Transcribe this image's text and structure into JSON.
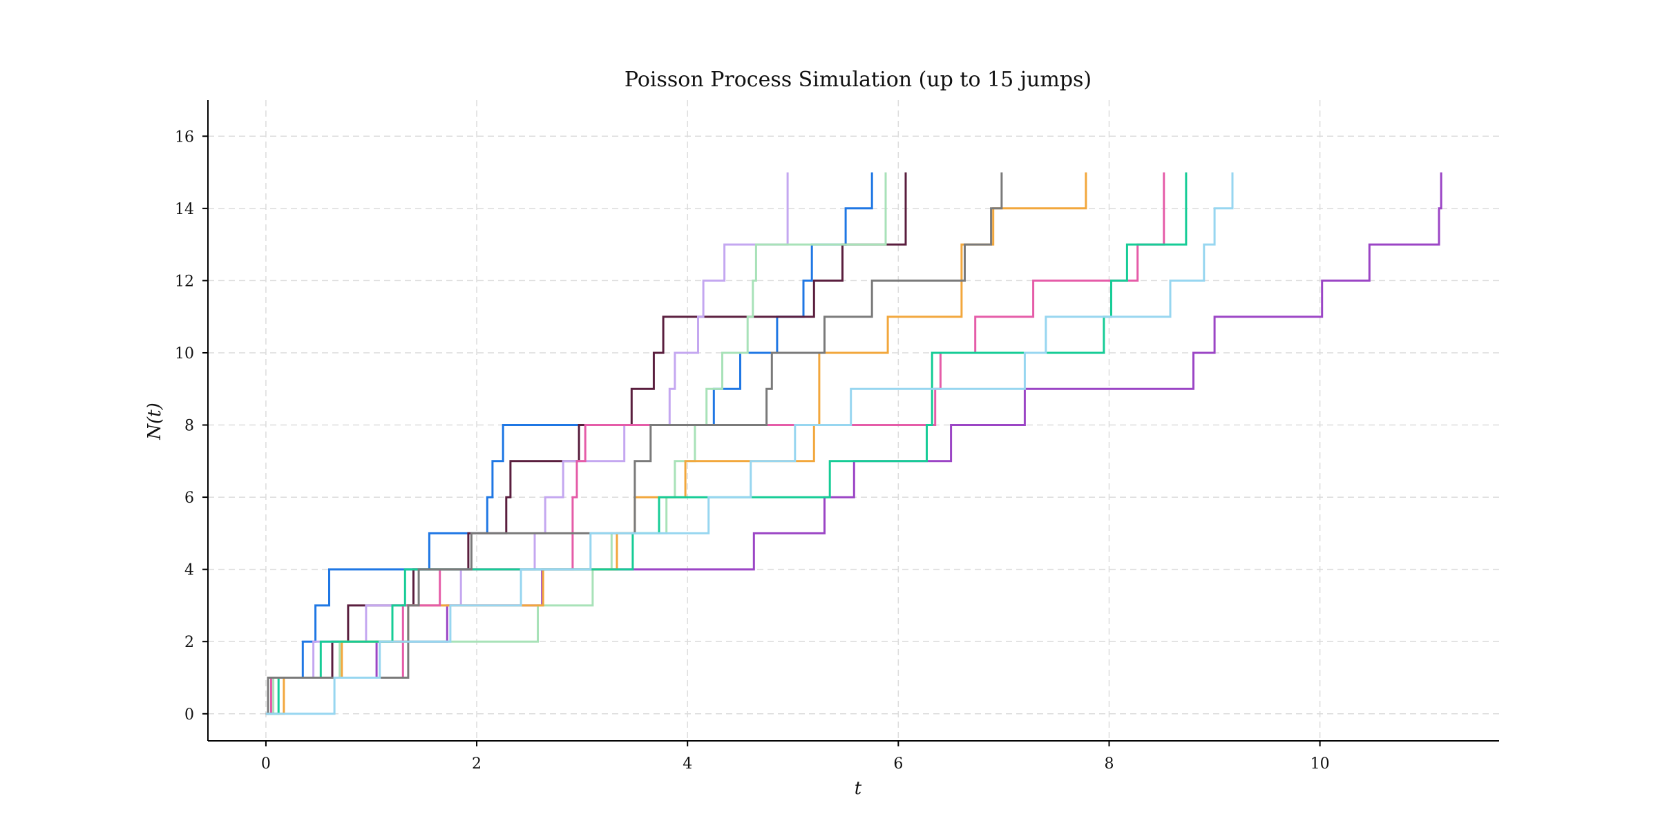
{
  "chart_data": {
    "type": "line",
    "step": "post",
    "title": "Poisson Process Simulation (up to 15 jumps)",
    "xlabel": "t",
    "ylabel": "N(t)",
    "xlim": [
      -0.55,
      11.7
    ],
    "ylim": [
      -0.75,
      17
    ],
    "xticks": [
      0,
      2,
      4,
      6,
      8,
      10
    ],
    "yticks": [
      0,
      2,
      4,
      6,
      8,
      10,
      12,
      14,
      16
    ],
    "grid": true,
    "legend": "none",
    "series": [
      {
        "color": "#1f77e4",
        "x": [
          0,
          0.02,
          0.35,
          0.47,
          0.6,
          1.55,
          2.1,
          2.15,
          2.25,
          4.25,
          4.5,
          4.85,
          5.1,
          5.18,
          5.5,
          5.75
        ],
        "y": [
          0,
          1,
          2,
          3,
          4,
          5,
          6,
          7,
          8,
          9,
          10,
          11,
          12,
          13,
          14,
          15
        ]
      },
      {
        "color": "#5a1e3e",
        "x": [
          0,
          0.02,
          0.63,
          0.78,
          1.4,
          1.92,
          2.28,
          2.32,
          2.97,
          3.47,
          3.68,
          3.77,
          5.2,
          5.47,
          6.07,
          6.07
        ],
        "y": [
          0,
          1,
          2,
          3,
          4,
          5,
          6,
          7,
          8,
          9,
          10,
          11,
          12,
          13,
          14,
          15
        ]
      },
      {
        "color": "#9b45c5",
        "x": [
          0,
          0.02,
          0.85,
          1.05,
          1.72,
          2.62,
          4.63,
          5.3,
          5.58,
          6.5,
          7.2,
          8.8,
          9.0,
          10.02,
          10.47,
          11.13,
          11.15
        ],
        "y": [
          0,
          1,
          1,
          2,
          3,
          4,
          5,
          6,
          7,
          8,
          9,
          10,
          11,
          12,
          13,
          14,
          15
        ]
      },
      {
        "color": "#c4a7f0",
        "x": [
          0,
          0.05,
          0.45,
          0.95,
          1.85,
          2.55,
          2.65,
          2.82,
          3.4,
          3.83,
          3.88,
          4.1,
          4.15,
          4.35,
          4.95
        ],
        "y": [
          0,
          1,
          2,
          3,
          4,
          5,
          6,
          7,
          8,
          9,
          10,
          11,
          12,
          13,
          15
        ]
      },
      {
        "color": "#a8e2b8",
        "x": [
          0,
          0.07,
          0.7,
          2.58,
          3.1,
          3.28,
          3.8,
          3.88,
          4.07,
          4.18,
          4.33,
          4.57,
          4.62,
          4.65,
          5.88
        ],
        "y": [
          0,
          1,
          2,
          3,
          4,
          5,
          6,
          7,
          8,
          9,
          10,
          11,
          12,
          13,
          15
        ]
      },
      {
        "color": "#f2a73c",
        "x": [
          0,
          0.17,
          0.72,
          1.35,
          2.63,
          3.33,
          3.5,
          3.98,
          5.2,
          5.25,
          5.9,
          6.6,
          6.9,
          7.78
        ],
        "y": [
          0,
          1,
          2,
          3,
          4,
          5,
          6,
          7,
          8,
          10,
          11,
          13,
          14,
          15
        ]
      },
      {
        "color": "#e55ca8",
        "x": [
          0,
          0.05,
          0.8,
          1.3,
          1.65,
          2.91,
          2.95,
          3.03,
          6.35,
          6.4,
          6.73,
          7.28,
          8.27,
          8.52
        ],
        "y": [
          0,
          1,
          1,
          3,
          4,
          6,
          7,
          8,
          9,
          10,
          11,
          12,
          13,
          15
        ]
      },
      {
        "color": "#16cc96",
        "x": [
          0,
          0.12,
          0.52,
          1.2,
          1.32,
          3.48,
          3.73,
          5.35,
          6.27,
          6.32,
          7.95,
          8.02,
          8.17,
          8.73,
          8.73
        ],
        "y": [
          0,
          1,
          2,
          3,
          4,
          5,
          6,
          7,
          8,
          10,
          11,
          12,
          13,
          14,
          15
        ]
      },
      {
        "color": "#7a7a7a",
        "x": [
          0,
          0.02,
          0.07,
          1.35,
          1.45,
          1.95,
          3.5,
          3.65,
          4.75,
          4.8,
          5.3,
          5.75,
          6.63,
          6.88,
          6.98
        ],
        "y": [
          0,
          1,
          1,
          3,
          4,
          5,
          7,
          8,
          9,
          10,
          11,
          12,
          13,
          14,
          15
        ]
      },
      {
        "color": "#97d6f0",
        "x": [
          0,
          0.65,
          1.08,
          1.75,
          2.42,
          3.08,
          4.2,
          4.6,
          5.02,
          5.55,
          7.2,
          7.4,
          8.58,
          8.9,
          9.0,
          9.17
        ],
        "y": [
          0,
          1,
          2,
          3,
          4,
          5,
          6,
          7,
          8,
          9,
          10,
          11,
          12,
          13,
          14,
          15
        ]
      }
    ]
  }
}
